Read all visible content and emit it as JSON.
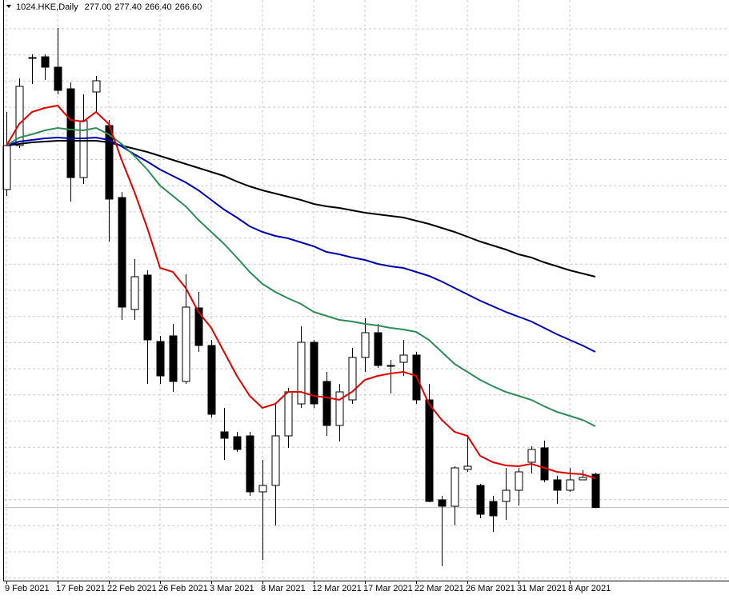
{
  "chart_data": {
    "type": "candlestick",
    "title": "1024.HKE,Daily",
    "title_ohlc_labels": [
      "277.00",
      "277.40",
      "266.40",
      "266.60"
    ],
    "categories": [
      "9 Feb 2021",
      null,
      null,
      null,
      "17 Feb 2021",
      null,
      null,
      null,
      "22 Feb 2021",
      null,
      null,
      null,
      "26 Feb 2021",
      null,
      null,
      null,
      "3 Mar 2021",
      null,
      null,
      null,
      "8 Mar 2021",
      null,
      null,
      null,
      "12 Mar 2021",
      null,
      null,
      null,
      "17 Mar 2021",
      null,
      null,
      null,
      "22 Mar 2021",
      null,
      null,
      null,
      "26 Mar 2021",
      null,
      null,
      null,
      "31 Mar 2021",
      null,
      null,
      null,
      "8 Apr 2021",
      null,
      null
    ],
    "open": [
      366.0,
      379.75,
      407.0,
      407.5,
      404.25,
      397.5,
      369.75,
      396.5,
      386.0,
      363.5,
      328.5,
      339.25,
      318.5,
      320.25,
      306.0,
      329.0,
      317.25,
      290.25,
      288.75,
      289.0,
      271.5,
      273.5,
      289.0,
      299.0,
      318.25,
      306.0,
      292.25,
      300.25,
      313.5,
      321.25,
      311.0,
      312.0,
      314.25,
      300.25,
      269.0,
      267.0,
      278.5,
      273.5,
      268.5,
      268.5,
      272.0,
      280.75,
      285.25,
      275.25,
      272.0,
      275.25,
      277.0
    ],
    "high": [
      390.25,
      400.75,
      408.25,
      408.25,
      416.5,
      399.5,
      395.75,
      401.5,
      387.75,
      365.25,
      344.25,
      340.75,
      320.25,
      324.0,
      339.5,
      334.0,
      319.0,
      297.75,
      290.25,
      290.25,
      281.5,
      299.0,
      304.0,
      323.25,
      319.0,
      309.0,
      305.25,
      316.5,
      325.75,
      324.0,
      312.75,
      319.0,
      315.25,
      305.25,
      270.25,
      279.5,
      289.0,
      274.0,
      270.25,
      279.0,
      279.0,
      285.75,
      287.5,
      276.5,
      279.0,
      278.25,
      277.4
    ],
    "low": [
      364.0,
      379.0,
      399.0,
      400.25,
      395.75,
      362.25,
      367.75,
      390.25,
      349.75,
      325.25,
      325.25,
      305.25,
      305.25,
      302.75,
      305.25,
      315.25,
      294.75,
      281.5,
      284.0,
      270.25,
      250.25,
      261.0,
      285.25,
      297.75,
      297.75,
      289.0,
      287.25,
      299.0,
      309.0,
      310.25,
      302.25,
      307.75,
      299.0,
      268.25,
      248.25,
      261.0,
      277.75,
      263.25,
      259.0,
      262.75,
      267.25,
      277.25,
      274.5,
      267.75,
      271.5,
      275.25,
      266.4
    ],
    "close": [
      379.75,
      398.25,
      407.25,
      404.25,
      397.0,
      369.75,
      387.5,
      400.0,
      363.0,
      329.25,
      338.75,
      319.0,
      307.75,
      306.0,
      329.25,
      317.25,
      295.75,
      288.25,
      284.75,
      271.5,
      273.5,
      289.0,
      302.75,
      318.25,
      299.0,
      292.25,
      302.75,
      313.5,
      321.25,
      311.0,
      310.75,
      314.25,
      300.25,
      268.5,
      267.0,
      279.0,
      279.5,
      264.5,
      264.0,
      272.0,
      277.75,
      284.75,
      275.25,
      272.0,
      275.25,
      276.0,
      266.6
    ],
    "up_color": "#ffffff",
    "down_color": "#000000",
    "ma_series": [
      {
        "color": "#000000",
        "values": [
          379.75,
          380.25,
          380.75,
          381.0,
          381.25,
          381.25,
          381.25,
          381.25,
          380.75,
          379.75,
          378.75,
          377.75,
          376.5,
          375.25,
          374.0,
          372.75,
          371.5,
          370.25,
          368.5,
          367.0,
          365.75,
          364.75,
          363.75,
          362.75,
          361.5,
          360.75,
          360.25,
          359.5,
          358.75,
          358.25,
          357.75,
          357.25,
          356.25,
          355.25,
          354.0,
          352.75,
          351.25,
          349.75,
          348.5,
          347.25,
          345.75,
          344.75,
          343.25,
          342.0,
          340.75,
          339.75,
          338.75
        ]
      },
      {
        "color": "#0000b0",
        "values": [
          379.75,
          381.0,
          381.5,
          382.0,
          382.25,
          382.0,
          382.0,
          382.25,
          381.5,
          379.5,
          377.0,
          374.75,
          372.25,
          370.25,
          368.25,
          365.75,
          362.75,
          359.75,
          357.25,
          354.5,
          352.75,
          351.5,
          350.75,
          349.5,
          348.25,
          346.5,
          345.75,
          344.75,
          344.0,
          342.75,
          342.0,
          341.5,
          340.25,
          339.0,
          337.25,
          335.25,
          333.25,
          331.25,
          329.5,
          327.75,
          326.25,
          324.75,
          322.75,
          320.75,
          319.0,
          317.25,
          315.25
        ]
      },
      {
        "color": "#2e8b57",
        "values": [
          379.75,
          382.25,
          383.25,
          384.5,
          385.25,
          384.75,
          384.5,
          385.25,
          383.25,
          380.25,
          376.5,
          372.25,
          367.25,
          364.0,
          360.75,
          356.5,
          352.75,
          349.0,
          344.75,
          340.25,
          336.5,
          334.0,
          332.0,
          330.25,
          327.75,
          326.5,
          325.25,
          324.75,
          324.0,
          323.5,
          322.75,
          322.25,
          321.5,
          319.0,
          315.25,
          311.5,
          309.0,
          306.5,
          304.5,
          302.75,
          301.5,
          300.25,
          298.25,
          296.5,
          295.25,
          294.0,
          292.0
        ]
      },
      {
        "color": "#e00000",
        "values": [
          379.75,
          386.5,
          390.25,
          391.5,
          392.25,
          387.75,
          387.25,
          390.25,
          386.5,
          375.25,
          365.25,
          354.0,
          341.5,
          340.25,
          335.25,
          327.75,
          322.75,
          315.25,
          307.75,
          301.5,
          297.75,
          299.0,
          302.75,
          302.75,
          301.5,
          301.0,
          300.25,
          302.75,
          306.5,
          307.75,
          308.5,
          309.0,
          307.75,
          299.0,
          294.0,
          290.25,
          289.0,
          282.75,
          280.75,
          279.75,
          279.5,
          280.25,
          279.0,
          277.75,
          277.25,
          277.0,
          275.75
        ]
      }
    ],
    "ylim": [
      243.75,
      420.75
    ],
    "grid": true,
    "last_price_line": true
  }
}
